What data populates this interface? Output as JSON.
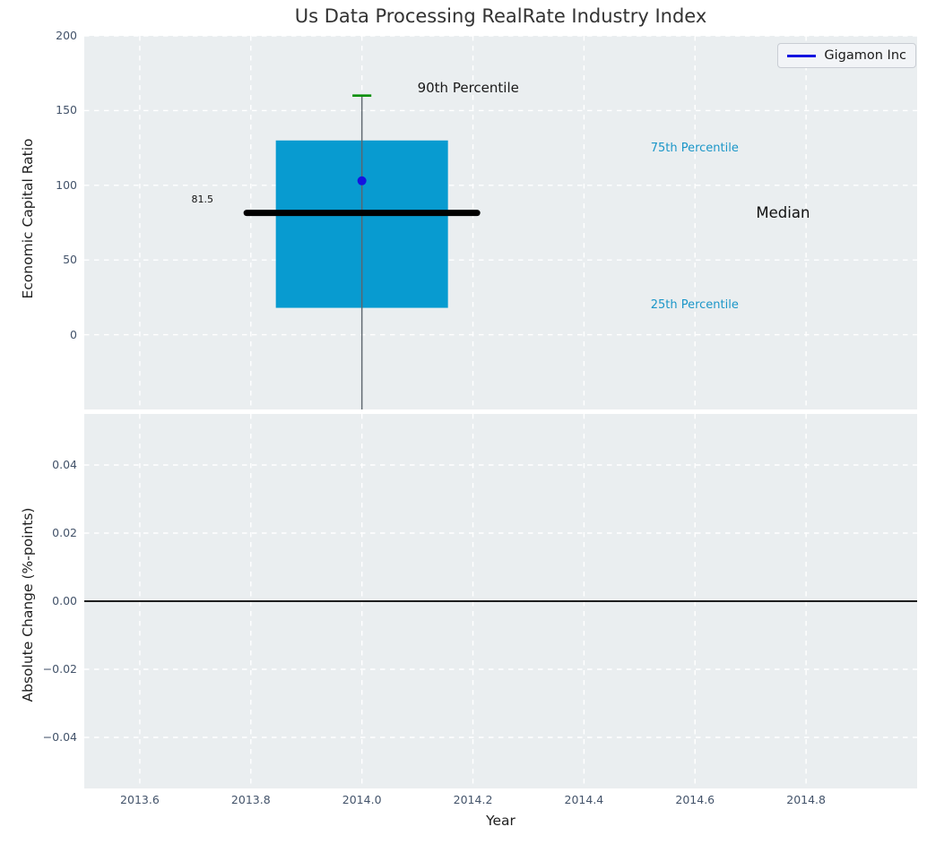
{
  "title": "Us Data Processing RealRate Industry Index",
  "legend": {
    "label": "Gigamon Inc"
  },
  "annotations": {
    "p90": "90th Percentile",
    "p75": "75th Percentile",
    "median": "Median",
    "p25": "25th Percentile",
    "median_value": "81.5"
  },
  "colors": {
    "box_fill": "#089bd0",
    "median_line": "#000000",
    "p90_cap": "#078f07",
    "whisker": "#5c656d",
    "company_point": "#1414e0",
    "legend_line": "#1414e0",
    "percentile_text": "#1b96c8",
    "plot_background": "#eaeef0",
    "grid": "#ffffff",
    "tick_text": "#43536a",
    "zero_line": "#000000"
  },
  "chart_data": [
    {
      "type": "box",
      "subplot": "economic-capital-ratio",
      "ylabel": "Economic Capital Ratio",
      "xlim": [
        2013.5,
        2015.0
      ],
      "ylim": [
        -50,
        200
      ],
      "yticks": [
        0,
        50,
        100,
        150,
        200
      ],
      "ytick_labels": [
        "0",
        "50",
        "100",
        "150",
        "200"
      ],
      "xticks": [
        2013.6,
        2013.8,
        2014.0,
        2014.2,
        2014.4,
        2014.6,
        2014.8
      ],
      "grid": true,
      "legend_position": "upper right",
      "box": {
        "x": 2014.0,
        "p25": 18,
        "median": 81.5,
        "p75": 130,
        "p90": 160,
        "whisker_clipped_below_ymin": true,
        "box_halfwidth": 0.155,
        "median_halfwidth": 0.2075,
        "cap_halfwidth": 0.017
      },
      "company_point": {
        "name": "Gigamon Inc",
        "x": 2014.0,
        "y": 103
      }
    },
    {
      "type": "line",
      "subplot": "absolute-change",
      "xlabel": "Year",
      "ylabel": "Absolute Change (%-points)",
      "xlim": [
        2013.5,
        2015.0
      ],
      "ylim": [
        -0.055,
        0.055
      ],
      "yticks": [
        0.04,
        0.02,
        0.0,
        -0.02,
        -0.04
      ],
      "ytick_labels": [
        "0.04",
        "0.02",
        "0.00",
        "−0.02",
        "−0.04"
      ],
      "xticks": [
        2013.6,
        2013.8,
        2014.0,
        2014.2,
        2014.4,
        2014.6,
        2014.8
      ],
      "xtick_labels": [
        "2013.6",
        "2013.8",
        "2014.0",
        "2014.2",
        "2014.4",
        "2014.6",
        "2014.8"
      ],
      "zero_line": 0.0,
      "series": []
    }
  ]
}
